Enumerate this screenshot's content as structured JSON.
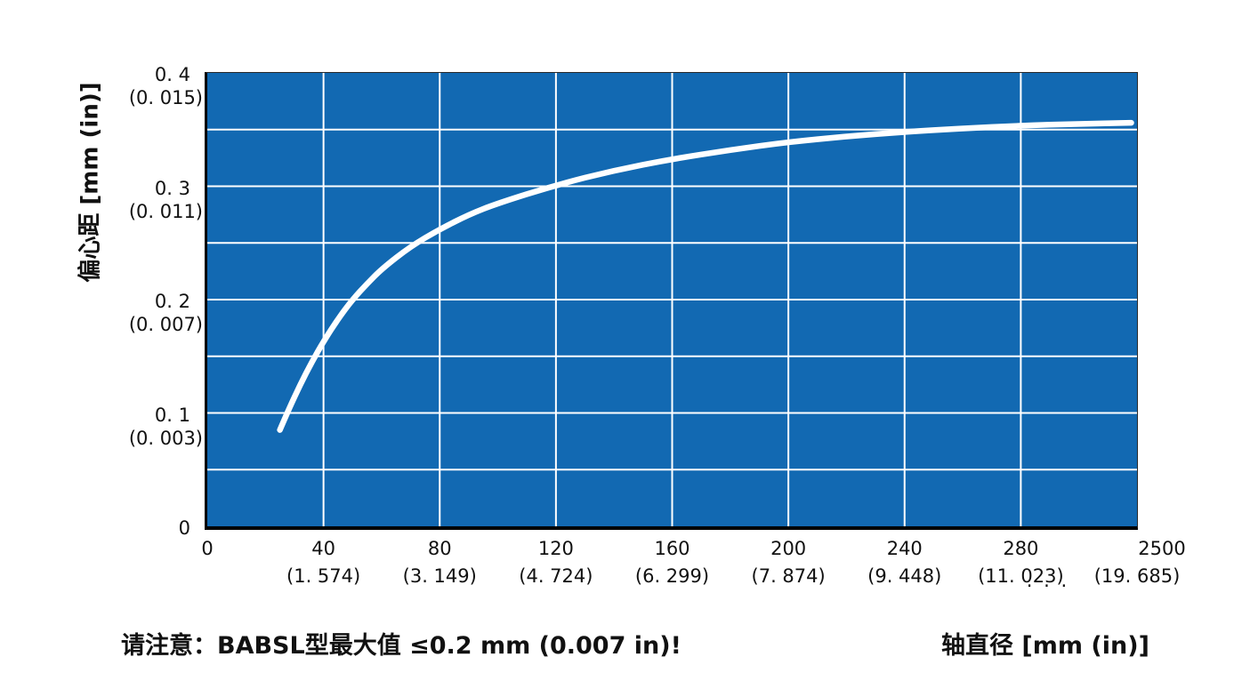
{
  "chart_data": {
    "type": "line",
    "title": "",
    "xlabel": "轴直径  [mm (in)]",
    "ylabel": "偏心距  [mm (in)]",
    "xlim": [
      0,
      320
    ],
    "ylim": [
      0,
      0.4
    ],
    "grid": true,
    "x_gridlines_mm": [
      40,
      80,
      120,
      160,
      200,
      240,
      280
    ],
    "y_gridlines": [
      0.05,
      0.1,
      0.15,
      0.2,
      0.25,
      0.3,
      0.35
    ],
    "x_tick_labels": [
      {
        "mm": 0,
        "label": "0",
        "sub": ""
      },
      {
        "mm": 40,
        "label": "40",
        "sub": "(1. 574)"
      },
      {
        "mm": 80,
        "label": "80",
        "sub": "(3. 149)"
      },
      {
        "mm": 120,
        "label": "120",
        "sub": "(4. 724)"
      },
      {
        "mm": 160,
        "label": "160",
        "sub": "(6. 299)"
      },
      {
        "mm": 200,
        "label": "200",
        "sub": "(7. 874)"
      },
      {
        "mm": 240,
        "label": "240",
        "sub": "(9. 448)"
      },
      {
        "mm": 280,
        "label": "280",
        "sub": "(11. 023)"
      },
      {
        "mm": 320,
        "label": "2500",
        "sub": "(19. 685)",
        "label_dx": 28,
        "pre_ellipsis": true
      }
    ],
    "ellipsis": ". . .",
    "y_tick_labels": [
      {
        "value": 0.4,
        "label": "0. 4",
        "sub": "(0. 015)"
      },
      {
        "value": 0.3,
        "label": "0. 3",
        "sub": "(0. 011)"
      },
      {
        "value": 0.2,
        "label": "0. 2",
        "sub": "(0. 007)"
      },
      {
        "value": 0.1,
        "label": "0. 1",
        "sub": "(0. 003)"
      },
      {
        "value": 0.0,
        "label": "0",
        "sub": ""
      }
    ],
    "series": [
      {
        "name": "curve",
        "points": [
          [
            25,
            0.085
          ],
          [
            28,
            0.103
          ],
          [
            32,
            0.125
          ],
          [
            36,
            0.145
          ],
          [
            40,
            0.163
          ],
          [
            45,
            0.183
          ],
          [
            50,
            0.2
          ],
          [
            55,
            0.214
          ],
          [
            60,
            0.227
          ],
          [
            70,
            0.247
          ],
          [
            80,
            0.262
          ],
          [
            90,
            0.275
          ],
          [
            100,
            0.285
          ],
          [
            120,
            0.301
          ],
          [
            140,
            0.314
          ],
          [
            160,
            0.324
          ],
          [
            180,
            0.332
          ],
          [
            200,
            0.339
          ],
          [
            220,
            0.344
          ],
          [
            240,
            0.348
          ],
          [
            260,
            0.351
          ],
          [
            280,
            0.3535
          ],
          [
            300,
            0.355
          ],
          [
            318,
            0.356
          ]
        ]
      }
    ]
  },
  "note": "请注意：BABSL型最大值 ≤0.2 mm (0.007 in)!",
  "colors": {
    "plot_bg": "#1269b2",
    "grid": "#ffffff",
    "curve": "#ffffff",
    "text": "#111111"
  }
}
